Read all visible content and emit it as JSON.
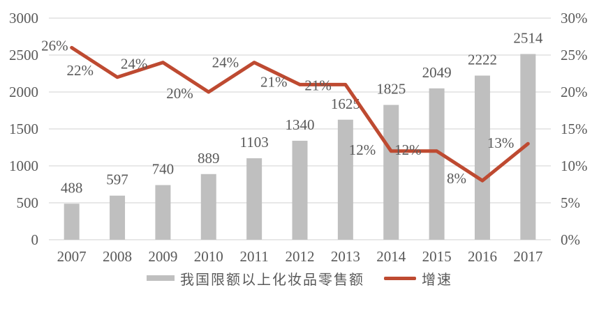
{
  "chart_data": {
    "type": "bar",
    "categories": [
      "2007",
      "2008",
      "2009",
      "2010",
      "2011",
      "2012",
      "2013",
      "2014",
      "2015",
      "2016",
      "2017"
    ],
    "series": [
      {
        "name": "我国限额以上化妆品零售额",
        "type": "bar",
        "axis": "left",
        "color": "#BFBFBF",
        "values": [
          488,
          597,
          740,
          889,
          1103,
          1340,
          1625,
          1825,
          2049,
          2222,
          2514
        ],
        "labels": [
          "488",
          "597",
          "740",
          "889",
          "1103",
          "1340",
          "1625",
          "1825",
          "2049",
          "2222",
          "2514"
        ]
      },
      {
        "name": "增速",
        "type": "line",
        "axis": "right",
        "color": "#BE4A31",
        "values": [
          26,
          22,
          24,
          20,
          24,
          21,
          21,
          12,
          12,
          8,
          13
        ],
        "labels": [
          "26%",
          "22%",
          "24%",
          "20%",
          "24%",
          "21%",
          "21%",
          "12%",
          "12%",
          "8%",
          "13%"
        ]
      }
    ],
    "title": "",
    "xlabel": "",
    "ylabel": "",
    "left_axis": {
      "min": 0,
      "max": 3000,
      "step": 500,
      "ticks": [
        "0",
        "500",
        "1000",
        "1500",
        "2000",
        "2500",
        "3000"
      ]
    },
    "right_axis": {
      "min": 0,
      "max": 30,
      "step": 5,
      "suffix": "%",
      "ticks": [
        "0%",
        "5%",
        "10%",
        "15%",
        "20%",
        "25%",
        "30%"
      ]
    },
    "grid": true,
    "legend_position": "bottom",
    "colors": {
      "text": "#595959",
      "gridline": "#D9D9D9",
      "background": "#FFFFFF"
    }
  }
}
